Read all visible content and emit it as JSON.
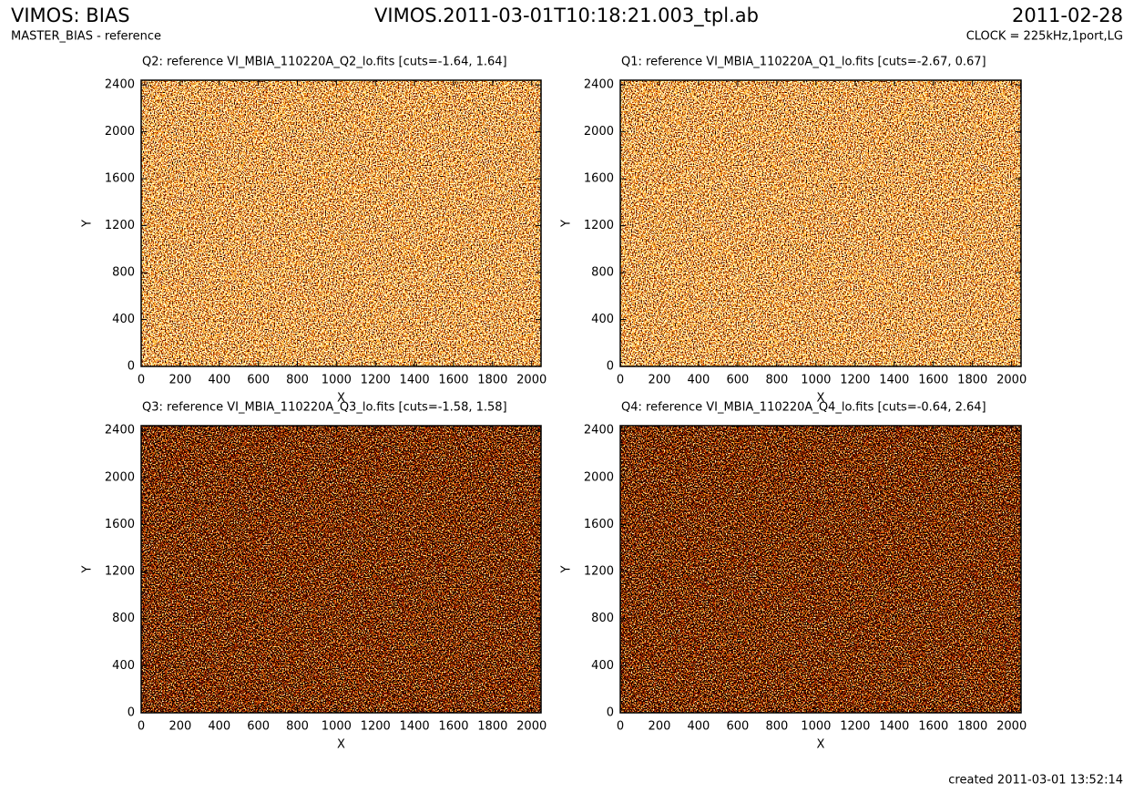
{
  "header": {
    "title": "VIMOS: BIAS",
    "subtitle": "MASTER_BIAS - reference",
    "center_title": "VIMOS.2011-03-01T10:18:21.003_tpl.ab",
    "date": "2011-02-28",
    "clock": "CLOCK = 225kHz,1port,LG"
  },
  "footer": "created 2011-03-01 13:52:14",
  "chart_data": [
    {
      "type": "image",
      "title": "Q2: reference VI_MBIA_110220A_Q2_lo.fits [cuts=-1.64, 1.64]",
      "xlabel": "X",
      "ylabel": "Y",
      "xlim": [
        0,
        2048
      ],
      "ylim": [
        0,
        2440
      ],
      "xticks": [
        0,
        200,
        400,
        600,
        800,
        1000,
        1200,
        1400,
        1600,
        1800,
        2000
      ],
      "yticks": [
        0,
        400,
        800,
        1200,
        1600,
        2000,
        2400
      ]
    },
    {
      "type": "image",
      "title": "Q1: reference VI_MBIA_110220A_Q1_lo.fits [cuts=-2.67, 0.67]",
      "xlabel": "X",
      "ylabel": "Y",
      "xlim": [
        0,
        2048
      ],
      "ylim": [
        0,
        2440
      ],
      "xticks": [
        0,
        200,
        400,
        600,
        800,
        1000,
        1200,
        1400,
        1600,
        1800,
        2000
      ],
      "yticks": [
        0,
        400,
        800,
        1200,
        1600,
        2000,
        2400
      ]
    },
    {
      "type": "image",
      "title": "Q3: reference VI_MBIA_110220A_Q3_lo.fits [cuts=-1.58, 1.58]",
      "xlabel": "X",
      "ylabel": "Y",
      "xlim": [
        0,
        2048
      ],
      "ylim": [
        0,
        2440
      ],
      "xticks": [
        0,
        200,
        400,
        600,
        800,
        1000,
        1200,
        1400,
        1600,
        1800,
        2000
      ],
      "yticks": [
        0,
        400,
        800,
        1200,
        1600,
        2000,
        2400
      ]
    },
    {
      "type": "image",
      "title": "Q4: reference VI_MBIA_110220A_Q4_lo.fits [cuts=-0.64, 2.64]",
      "xlabel": "X",
      "ylabel": "Y",
      "xlim": [
        0,
        2048
      ],
      "ylim": [
        0,
        2440
      ],
      "xticks": [
        0,
        200,
        400,
        600,
        800,
        1000,
        1200,
        1400,
        1600,
        1800,
        2000
      ],
      "yticks": [
        0,
        400,
        800,
        1200,
        1600,
        2000,
        2400
      ]
    }
  ]
}
